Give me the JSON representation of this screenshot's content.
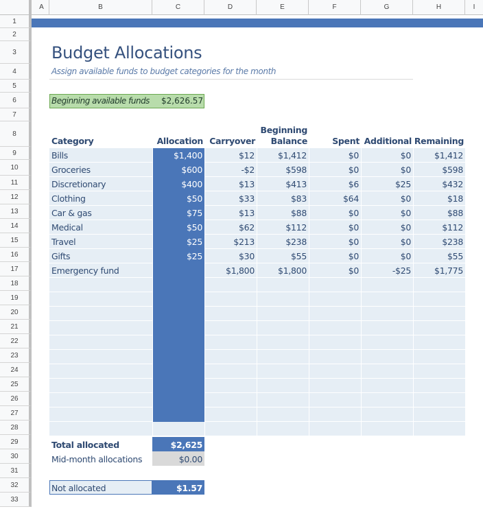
{
  "columns": [
    "A",
    "B",
    "C",
    "D",
    "E",
    "F",
    "G",
    "H",
    "I"
  ],
  "rows": [
    "1",
    "2",
    "3",
    "4",
    "5",
    "6",
    "7",
    "8",
    "9",
    "10",
    "11",
    "12",
    "13",
    "14",
    "15",
    "16",
    "17",
    "18",
    "19",
    "20",
    "21",
    "22",
    "23",
    "24",
    "25",
    "26",
    "27",
    "28",
    "29",
    "30",
    "31",
    "32",
    "33"
  ],
  "sheet": {
    "title": "Budget Allocations",
    "subtitle": "Assign available funds to budget categories for the month",
    "beginning_funds_label": "Beginning available funds",
    "beginning_funds_value": "$2,626.57"
  },
  "table": {
    "headers": {
      "category": "Category",
      "allocation": "Allocation",
      "carryover": "Carryover",
      "beginning_line1": "Beginning",
      "beginning_line2": "Balance",
      "spent": "Spent",
      "additional": "Additional",
      "remaining": "Remaining"
    },
    "rows": [
      {
        "category": "Bills",
        "allocation": "$1,400",
        "carryover": "$12",
        "beginning": "$1,412",
        "spent": "$0",
        "additional": "$0",
        "remaining": "$1,412"
      },
      {
        "category": "Groceries",
        "allocation": "$600",
        "carryover": "-$2",
        "beginning": "$598",
        "spent": "$0",
        "additional": "$0",
        "remaining": "$598"
      },
      {
        "category": "Discretionary",
        "allocation": "$400",
        "carryover": "$13",
        "beginning": "$413",
        "spent": "$6",
        "additional": "$25",
        "remaining": "$432"
      },
      {
        "category": "Clothing",
        "allocation": "$50",
        "carryover": "$33",
        "beginning": "$83",
        "spent": "$64",
        "additional": "$0",
        "remaining": "$18"
      },
      {
        "category": "Car & gas",
        "allocation": "$75",
        "carryover": "$13",
        "beginning": "$88",
        "spent": "$0",
        "additional": "$0",
        "remaining": "$88"
      },
      {
        "category": "Medical",
        "allocation": "$50",
        "carryover": "$62",
        "beginning": "$112",
        "spent": "$0",
        "additional": "$0",
        "remaining": "$112"
      },
      {
        "category": "Travel",
        "allocation": "$25",
        "carryover": "$213",
        "beginning": "$238",
        "spent": "$0",
        "additional": "$0",
        "remaining": "$238"
      },
      {
        "category": "Gifts",
        "allocation": "$25",
        "carryover": "$30",
        "beginning": "$55",
        "spent": "$0",
        "additional": "$0",
        "remaining": "$55"
      },
      {
        "category": "Emergency fund",
        "allocation": "",
        "carryover": "$1,800",
        "beginning": "$1,800",
        "spent": "$0",
        "additional": "-$25",
        "remaining": "$1,775"
      }
    ]
  },
  "summary": {
    "total_allocated_label": "Total allocated",
    "total_allocated_value": "$2,625",
    "mid_month_label": "Mid-month allocations",
    "mid_month_value": "$0.00",
    "not_allocated_label": "Not allocated",
    "not_allocated_value": "$1.57"
  },
  "colors": {
    "band": "#4a76b8",
    "allocation_fill": "#4a76b8",
    "row_fill": "#e6eef5",
    "funds_fill": "#b8dcab",
    "text": "#2f4a72"
  }
}
